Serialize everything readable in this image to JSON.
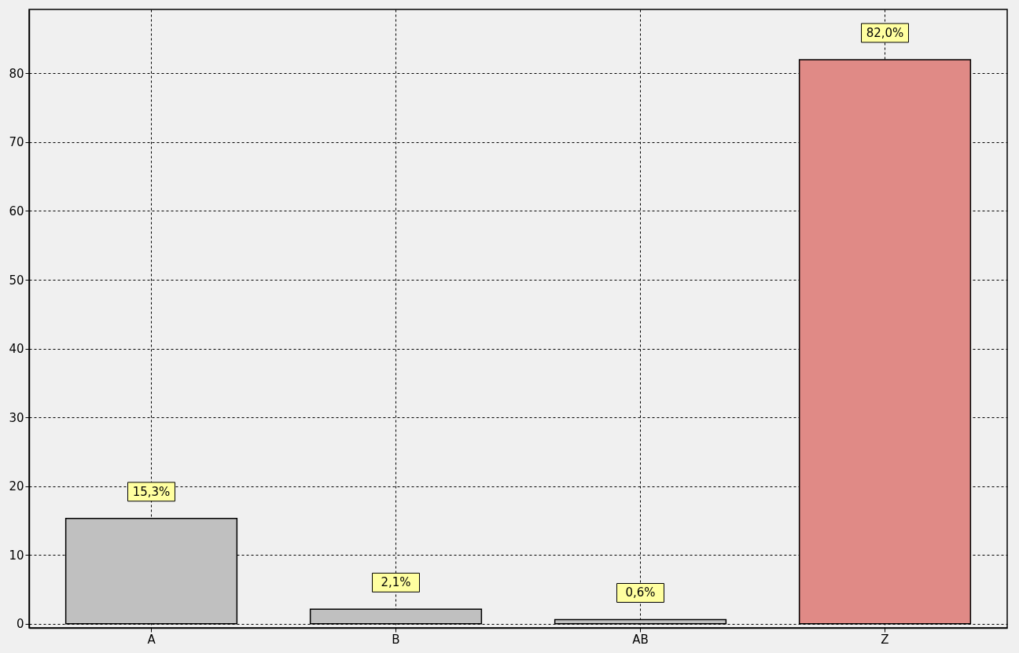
{
  "chart_data": {
    "type": "bar",
    "categories": [
      "A",
      "B",
      "AB",
      "Z"
    ],
    "values": [
      15.3,
      2.1,
      0.6,
      82.0
    ],
    "colors": [
      "#c0c0c0",
      "#c0c0c0",
      "#c0c0c0",
      "#e08a86"
    ],
    "value_labels": [
      "15,3%",
      "2,1%",
      "0,6%",
      "82,0%"
    ],
    "ylim": [
      -0.6,
      89.3
    ],
    "yticks": [
      0,
      10,
      20,
      30,
      40,
      50,
      60,
      70,
      80
    ],
    "grid": true
  }
}
